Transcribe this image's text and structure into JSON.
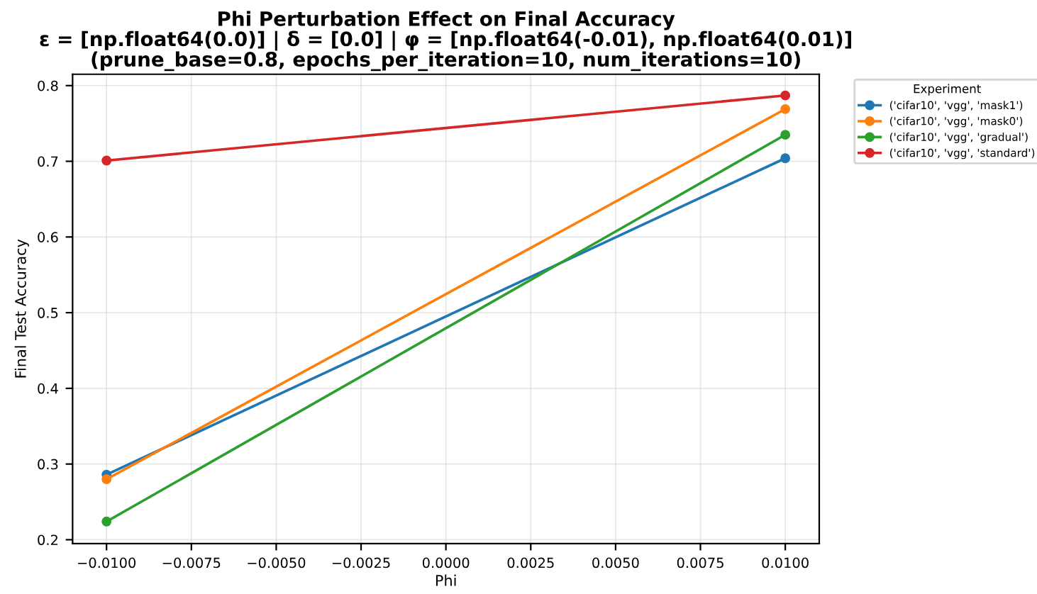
{
  "chart_data": {
    "type": "line",
    "title": "Phi Perturbation Effect on Final Accuracy\nε = [np.float64(0.0)] | δ = [0.0] | φ = [np.float64(-0.01), np.float64(0.01)]\n(prune_base=0.8, epochs_per_iteration=10, num_iterations=10)",
    "xlabel": "Phi",
    "ylabel": "Final Test Accuracy",
    "legend_title": "Experiment",
    "x": [
      -0.01,
      0.01
    ],
    "series": [
      {
        "name": "('cifar10', 'vgg', 'mask1')",
        "color": "#1f77b4",
        "values": [
          0.286,
          0.704
        ]
      },
      {
        "name": "('cifar10', 'vgg', 'mask0')",
        "color": "#ff7f0e",
        "values": [
          0.28,
          0.769
        ]
      },
      {
        "name": "('cifar10', 'vgg', 'gradual')",
        "color": "#2ca02c",
        "values": [
          0.224,
          0.735
        ]
      },
      {
        "name": "('cifar10', 'vgg', 'standard')",
        "color": "#d62728",
        "values": [
          0.701,
          0.787
        ]
      }
    ],
    "xlim": [
      -0.011,
      0.011
    ],
    "ylim": [
      0.195,
      0.815
    ],
    "xticks": [
      {
        "value": -0.01,
        "label": "−0.0100"
      },
      {
        "value": -0.0075,
        "label": "−0.0075"
      },
      {
        "value": -0.005,
        "label": "−0.0050"
      },
      {
        "value": -0.0025,
        "label": "−0.0025"
      },
      {
        "value": 0,
        "label": "0.0000"
      },
      {
        "value": 0.0025,
        "label": "0.0025"
      },
      {
        "value": 0.005,
        "label": "0.0050"
      },
      {
        "value": 0.0075,
        "label": "0.0075"
      },
      {
        "value": 0.01,
        "label": "0.0100"
      }
    ],
    "yticks": [
      0.2,
      0.3,
      0.4,
      0.5,
      0.6,
      0.7,
      0.8
    ],
    "grid": true,
    "legend": "top right",
    "marker": "circle",
    "line_style": "solid"
  }
}
